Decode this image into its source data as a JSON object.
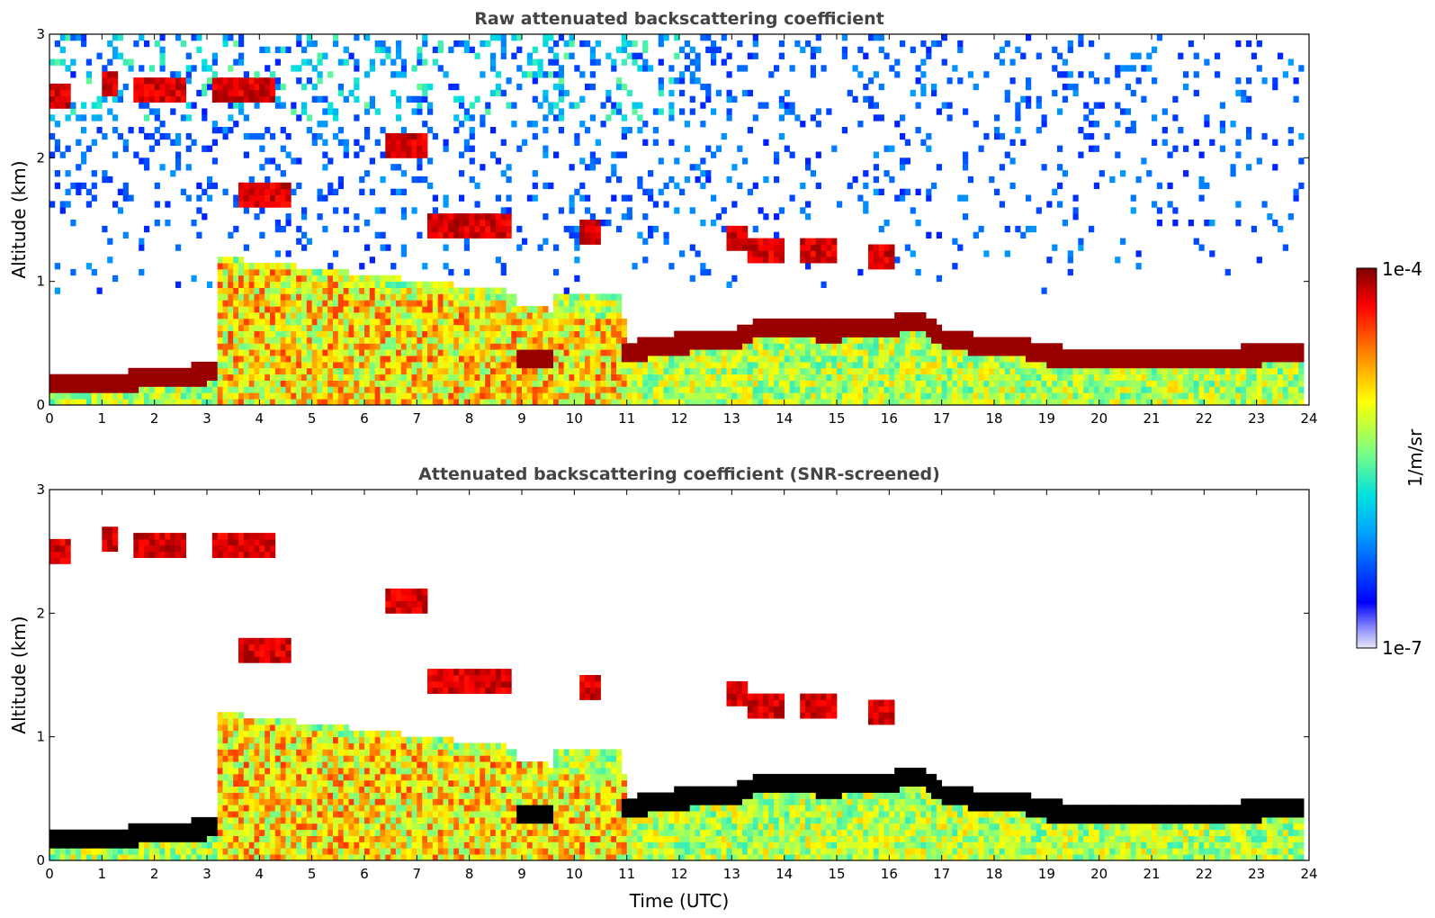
{
  "chart_data": [
    {
      "type": "heatmap",
      "title": "Raw attenuated backscattering coefficient",
      "xlabel": "",
      "ylabel": "Altitude (km)",
      "xlim": [
        0,
        24
      ],
      "ylim": [
        0,
        3
      ],
      "xticks": [
        "0",
        "1",
        "2",
        "3",
        "4",
        "5",
        "6",
        "7",
        "8",
        "9",
        "10",
        "11",
        "12",
        "13",
        "14",
        "15",
        "16",
        "17",
        "18",
        "19",
        "20",
        "21",
        "22",
        "23",
        "24"
      ],
      "yticks": [
        "0",
        "1",
        "2",
        "3"
      ],
      "screened": false,
      "features": {
        "cloud_base_km": [
          {
            "t": 0.0,
            "z": 0.17
          },
          {
            "t": 1.0,
            "z": 0.17
          },
          {
            "t": 2.0,
            "z": 0.22
          },
          {
            "t": 3.1,
            "z": 0.26
          },
          {
            "t": 9.0,
            "z": 0.38
          },
          {
            "t": 9.6,
            "z": 0.38
          },
          {
            "t": 11.0,
            "z": 0.43
          },
          {
            "t": 12.0,
            "z": 0.5
          },
          {
            "t": 13.0,
            "z": 0.52
          },
          {
            "t": 13.5,
            "z": 0.62
          },
          {
            "t": 15.0,
            "z": 0.6
          },
          {
            "t": 16.0,
            "z": 0.64
          },
          {
            "t": 16.6,
            "z": 0.68
          },
          {
            "t": 17.0,
            "z": 0.55
          },
          {
            "t": 18.0,
            "z": 0.45
          },
          {
            "t": 18.3,
            "z": 0.5
          },
          {
            "t": 19.0,
            "z": 0.4
          },
          {
            "t": 20.0,
            "z": 0.38
          },
          {
            "t": 21.0,
            "z": 0.38
          },
          {
            "t": 22.0,
            "z": 0.38
          },
          {
            "t": 23.0,
            "z": 0.4
          },
          {
            "t": 23.8,
            "z": 0.43
          }
        ],
        "elevated_layers": [
          {
            "t0": 0.0,
            "t1": 0.35,
            "z": 2.5
          },
          {
            "t0": 1.0,
            "t1": 1.3,
            "z": 2.6
          },
          {
            "t0": 1.6,
            "t1": 2.6,
            "z": 2.55
          },
          {
            "t0": 3.1,
            "t1": 4.3,
            "z": 2.55
          },
          {
            "t0": 3.6,
            "t1": 4.6,
            "z": 1.7
          },
          {
            "t0": 6.4,
            "t1": 7.2,
            "z": 2.1
          },
          {
            "t0": 7.2,
            "t1": 8.8,
            "z": 1.45
          },
          {
            "t0": 10.1,
            "t1": 10.5,
            "z": 1.4
          },
          {
            "t0": 12.9,
            "t1": 13.3,
            "z": 1.35
          },
          {
            "t0": 13.3,
            "t1": 14.0,
            "z": 1.25
          },
          {
            "t0": 14.3,
            "t1": 15.0,
            "z": 1.25
          },
          {
            "t0": 15.6,
            "t1": 16.1,
            "z": 1.2
          }
        ]
      }
    },
    {
      "type": "heatmap",
      "title": "Attenuated backscattering coefficient (SNR-screened)",
      "xlabel": "Time (UTC)",
      "ylabel": "Altitude (km)",
      "xlim": [
        0,
        24
      ],
      "ylim": [
        0,
        3
      ],
      "xticks": [
        "0",
        "1",
        "2",
        "3",
        "4",
        "5",
        "6",
        "7",
        "8",
        "9",
        "10",
        "11",
        "12",
        "13",
        "14",
        "15",
        "16",
        "17",
        "18",
        "19",
        "20",
        "21",
        "22",
        "23",
        "24"
      ],
      "yticks": [
        "0",
        "1",
        "2",
        "3"
      ],
      "screened": true
    }
  ],
  "colorbar": {
    "label": "1/m/sr",
    "max_label": "1e-4",
    "min_label": "1e-7",
    "scale": "log",
    "range": [
      1e-07,
      0.0001
    ],
    "colormap": "jet",
    "colors": [
      "#e8e8f8",
      "#0000ff",
      "#00a0ff",
      "#00e0e0",
      "#80ff80",
      "#ffff00",
      "#ff8000",
      "#ff0000",
      "#800000"
    ]
  }
}
